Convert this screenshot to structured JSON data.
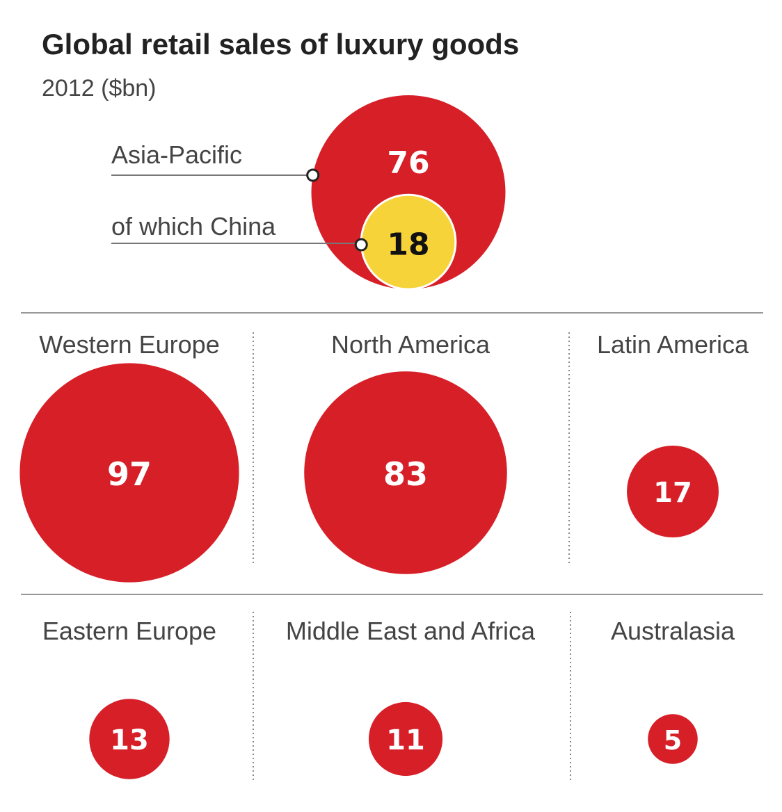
{
  "chart_data": {
    "type": "bubble",
    "title": "Global retail sales of luxury goods",
    "subtitle": "2012 ($bn)",
    "unit": "$bn",
    "featured": {
      "name": "Asia-Pacific",
      "label": "Asia-Pacific",
      "value": 76,
      "sub": {
        "name": "China",
        "label": "of which China",
        "value": 18
      }
    },
    "regions": [
      {
        "name": "Western Europe",
        "value": 97
      },
      {
        "name": "North America",
        "value": 83
      },
      {
        "name": "Latin America",
        "value": 17
      },
      {
        "name": "Eastern Europe",
        "value": 13
      },
      {
        "name": "Middle East and Africa",
        "value": 11
      },
      {
        "name": "Australasia",
        "value": 5
      }
    ],
    "colors": {
      "main": "#d71f28",
      "sub": "#f7d33a",
      "text": "#444444"
    }
  }
}
